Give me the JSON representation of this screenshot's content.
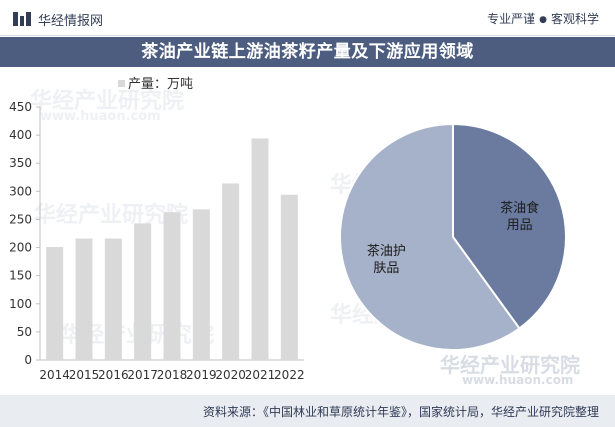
{
  "header": {
    "brand": "华经情报网",
    "slogan_left": "专业严谨",
    "slogan_right": "客观科学"
  },
  "title": "茶油产业链上游油茶籽产量及下游应用领域",
  "watermark": {
    "main": "华经产业研究院",
    "site": "www.huaon.com"
  },
  "footer": {
    "source": "资料来源：《中国林业和草原统计年鉴》，国家统计局，华经产业研究院整理"
  },
  "colors": {
    "bar": "#d9d9d9",
    "pie_food": "#6a7b9f",
    "pie_skin": "#a6b2c9",
    "title_bg": "#4d5d80"
  },
  "chart_data": [
    {
      "type": "bar",
      "legend": "产量：万吨",
      "legend_position": "top-left",
      "categories": [
        "2014",
        "2015",
        "2016",
        "2017",
        "2018",
        "2019",
        "2020",
        "2021",
        "2022"
      ],
      "values": [
        201,
        216,
        216,
        243,
        263,
        268,
        314,
        394,
        294
      ],
      "ylim": [
        0,
        450
      ],
      "yticks": [
        0,
        50,
        100,
        150,
        200,
        250,
        300,
        350,
        400,
        450
      ],
      "grid": false
    },
    {
      "type": "pie",
      "slices": [
        {
          "label": "茶油食用品",
          "label_lines": [
            "茶油食",
            "用品"
          ],
          "value": 40
        },
        {
          "label": "茶油护肤品",
          "label_lines": [
            "茶油护",
            "肤品"
          ],
          "value": 60
        }
      ]
    }
  ]
}
